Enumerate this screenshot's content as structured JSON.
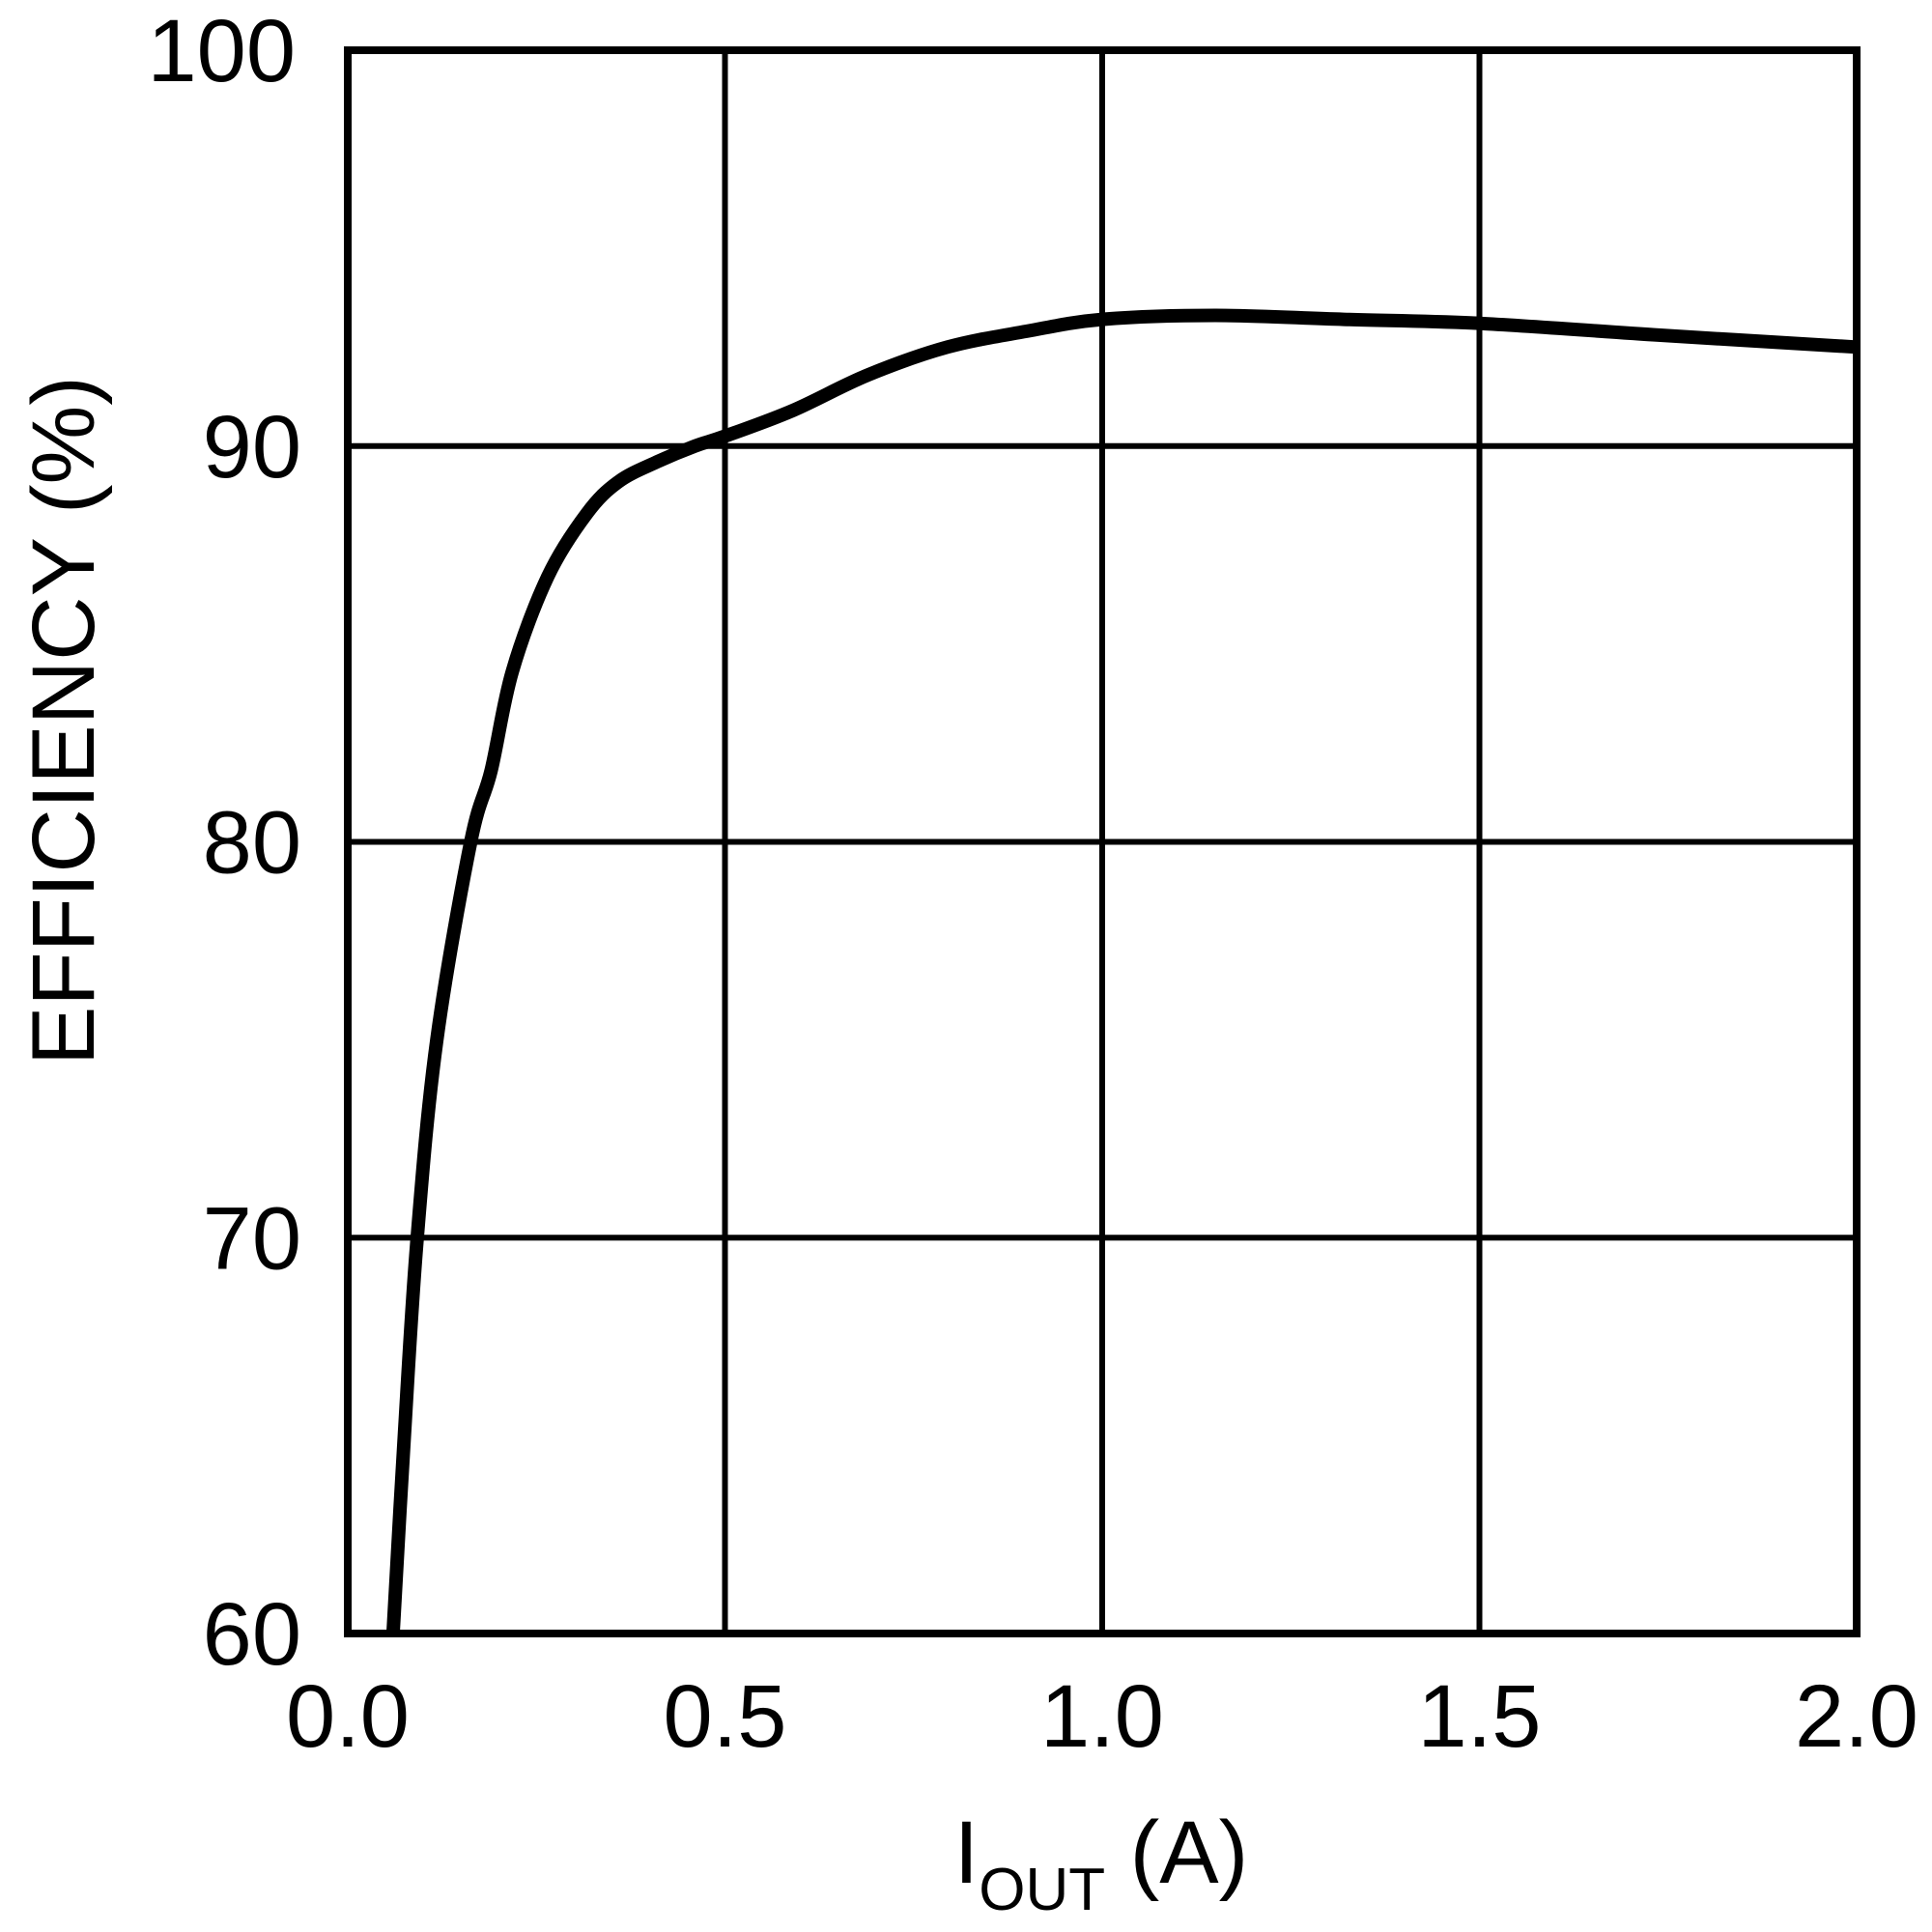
{
  "chart_data": {
    "type": "line",
    "title": "",
    "xlabel": "I_OUT (A)",
    "xlabel_main": "I",
    "xlabel_sub": "OUT",
    "xlabel_unit": " (A)",
    "ylabel": "EFFICIENCY (%)",
    "xlim": [
      0.0,
      2.0
    ],
    "ylim": [
      60,
      100
    ],
    "xticks": [
      "0.0",
      "0.5",
      "1.0",
      "1.5",
      "2.0"
    ],
    "yticks": [
      "60",
      "70",
      "80",
      "90",
      "100"
    ],
    "grid": true,
    "legend": null,
    "series": [
      {
        "name": "Efficiency",
        "color": "#000000",
        "x": [
          0.06,
          0.075,
          0.092,
          0.118,
          0.163,
          0.19,
          0.218,
          0.265,
          0.317,
          0.359,
          0.41,
          0.46,
          0.5,
          0.59,
          0.69,
          0.795,
          0.9,
          1.0,
          1.15,
          1.32,
          1.5,
          1.74,
          2.0
        ],
        "y": [
          60,
          65,
          70,
          75,
          80,
          81.8,
          84.3,
          86.7,
          88.3,
          89.1,
          89.6,
          90.0,
          90.25,
          90.9,
          91.8,
          92.5,
          92.9,
          93.2,
          93.3,
          93.2,
          93.1,
          92.8,
          92.5
        ]
      }
    ]
  },
  "colors": {
    "background": "#ffffff",
    "line": "#000000",
    "grid": "#000000"
  }
}
